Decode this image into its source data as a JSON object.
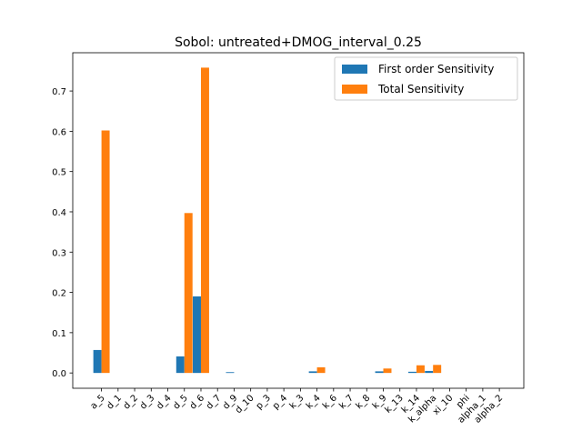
{
  "chart_data": {
    "type": "bar",
    "title": "Sobol: untreated+DMOG_interval_0.25",
    "xlabel": "",
    "ylabel": "",
    "ylim": [
      -0.038,
      0.795
    ],
    "yticks": [
      0.0,
      0.1,
      0.2,
      0.3,
      0.4,
      0.5,
      0.6,
      0.7
    ],
    "ytick_labels": [
      "0.0",
      "0.1",
      "0.2",
      "0.3",
      "0.4",
      "0.5",
      "0.6",
      "0.7"
    ],
    "grid": false,
    "legend_position": "top-right",
    "categories": [
      "a_5",
      "d_1",
      "d_2",
      "d_3",
      "d_4",
      "d_5",
      "d_6",
      "d_7",
      "d_9",
      "d_10",
      "p_3",
      "p_4",
      "k_3",
      "k_4",
      "k_6",
      "k_7",
      "k_8",
      "k_9",
      "k_13",
      "k_14",
      "k_alpha",
      "xi_10",
      "phi",
      "alpha_1",
      "alpha_2"
    ],
    "series": [
      {
        "name": "First order Sensitivity",
        "color": "#1f77b4",
        "values": [
          0.057,
          0.0,
          0.0,
          0.0,
          0.0,
          0.041,
          0.19,
          0.0,
          0.002,
          0.0,
          0.0,
          0.0,
          0.0,
          0.004,
          0.0,
          0.0,
          0.0,
          0.004,
          0.0,
          0.003,
          0.005,
          0.0,
          0.0,
          0.0,
          0.0
        ]
      },
      {
        "name": "Total Sensitivity",
        "color": "#ff7f0e",
        "values": [
          0.602,
          0.0,
          0.0,
          0.0,
          0.0,
          0.397,
          0.758,
          0.0,
          0.0,
          0.0,
          0.0,
          0.0,
          0.0,
          0.014,
          0.0,
          0.0,
          0.0,
          0.011,
          0.0,
          0.019,
          0.02,
          0.0,
          0.0,
          0.0,
          0.0
        ]
      }
    ]
  }
}
